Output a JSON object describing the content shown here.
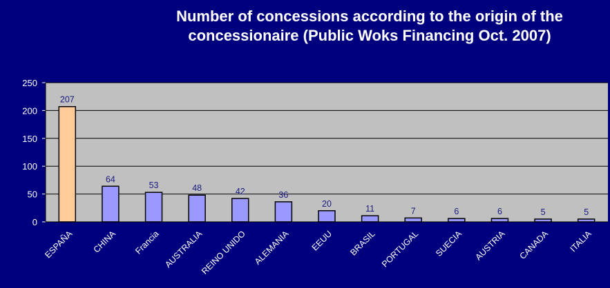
{
  "chart_data": {
    "type": "bar",
    "title_line1": "Number of concessions according to the origin of the",
    "title_line2": "concessionaire (Public Woks Financing Oct. 2007)",
    "categories": [
      "ESPAÑA",
      "CHINA",
      "Francia",
      "AUSTRALIA",
      "REINO UNIDO",
      "ALEMANIA",
      "EEUU",
      "BRASIL",
      "PORTUGAL",
      "SUECIA",
      "AUSTRIA",
      "CANADA",
      "ITALIA"
    ],
    "values": [
      207,
      64,
      53,
      48,
      42,
      36,
      20,
      11,
      7,
      6,
      6,
      5,
      5
    ],
    "data_labels": [
      "207",
      "64",
      "53",
      "48",
      "42",
      "36",
      "20",
      "11",
      "7",
      "6",
      "6",
      "5",
      "5"
    ],
    "ylim": [
      0,
      250
    ],
    "yticks": [
      0,
      50,
      100,
      150,
      200,
      250
    ],
    "ytick_labels": [
      "0",
      "50",
      "100",
      "150",
      "200",
      "250"
    ],
    "grid": true,
    "colors": {
      "background": "#00007f",
      "plot_area": "#c0c0c0",
      "highlight_bar": "#ffcc99",
      "bar": "#9999ff",
      "bar_outline": "#000000",
      "gridline": "#000000",
      "text": "#ffffff",
      "data_label": "#1a1a80"
    },
    "highlight_index": 0
  }
}
